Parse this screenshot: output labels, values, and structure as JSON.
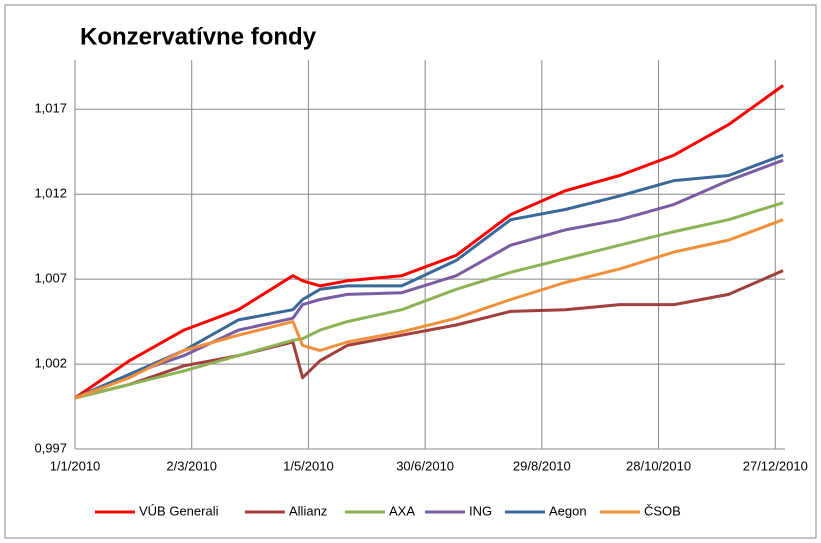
{
  "chart_data": {
    "type": "line",
    "title": "Konzervatívne fondy",
    "x": [
      "2010-01-01",
      "2010-01-29",
      "2010-02-26",
      "2010-03-26",
      "2010-04-23",
      "2010-04-28",
      "2010-05-07",
      "2010-05-21",
      "2010-06-18",
      "2010-07-16",
      "2010-08-13",
      "2010-09-10",
      "2010-10-08",
      "2010-11-05",
      "2010-12-03",
      "2010-12-31"
    ],
    "xlim": [
      "2010-01-01",
      "2011-01-01"
    ],
    "xticks": [
      {
        "value": "2010-01-01",
        "label": "1/1/2010"
      },
      {
        "value": "2010-03-02",
        "label": "2/3/2010"
      },
      {
        "value": "2010-05-01",
        "label": "1/5/2010"
      },
      {
        "value": "2010-06-30",
        "label": "30/6/2010"
      },
      {
        "value": "2010-08-29",
        "label": "29/8/2010"
      },
      {
        "value": "2010-10-28",
        "label": "28/10/2010"
      },
      {
        "value": "2010-12-27",
        "label": "27/12/2010"
      }
    ],
    "ylim": [
      0.997,
      1.0199
    ],
    "yticks": [
      {
        "value": 0.997,
        "label": "0,997"
      },
      {
        "value": 1.002,
        "label": "1,002"
      },
      {
        "value": 1.007,
        "label": "1,007"
      },
      {
        "value": 1.012,
        "label": "1,012"
      },
      {
        "value": 1.017,
        "label": "1,017"
      }
    ],
    "grid": true,
    "legend": "bottom",
    "series": [
      {
        "name": "VÚB Generali",
        "color": "#ff0000",
        "values": [
          1.0,
          1.0022,
          1.004,
          1.0052,
          1.0072,
          1.0069,
          1.0066,
          1.0069,
          1.0072,
          1.0084,
          1.0108,
          1.0122,
          1.0131,
          1.0143,
          1.0161,
          1.0184
        ]
      },
      {
        "name": "Allianz",
        "color": "#a0403c",
        "values": [
          1.0,
          1.0008,
          1.0019,
          1.0025,
          1.0033,
          1.0012,
          1.0022,
          1.0031,
          1.0037,
          1.0043,
          1.0051,
          1.0052,
          1.0055,
          1.0055,
          1.0061,
          1.0075
        ]
      },
      {
        "name": "AXA",
        "color": "#8db255",
        "values": [
          1.0,
          1.0008,
          1.0016,
          1.0025,
          1.0034,
          1.0035,
          1.004,
          1.0045,
          1.0052,
          1.0064,
          1.0074,
          1.0082,
          1.009,
          1.0098,
          1.0105,
          1.0115
        ]
      },
      {
        "name": "ING",
        "color": "#7a5ca0",
        "values": [
          1.0,
          1.0014,
          1.0025,
          1.004,
          1.0047,
          1.0055,
          1.0058,
          1.0061,
          1.0062,
          1.0072,
          1.009,
          1.0099,
          1.0105,
          1.0114,
          1.0128,
          1.014
        ]
      },
      {
        "name": "Aegon",
        "color": "#3a6898",
        "values": [
          1.0,
          1.0014,
          1.0028,
          1.0046,
          1.0052,
          1.0058,
          1.0064,
          1.0066,
          1.0066,
          1.0081,
          1.0105,
          1.0111,
          1.0119,
          1.0128,
          1.0131,
          1.0143
        ]
      },
      {
        "name": "ČSOB",
        "color": "#f0903a",
        "values": [
          1.0,
          1.0012,
          1.0028,
          1.0037,
          1.0045,
          1.0031,
          1.0028,
          1.0033,
          1.0039,
          1.0047,
          1.0058,
          1.0068,
          1.0076,
          1.0086,
          1.0093,
          1.0105
        ]
      }
    ]
  }
}
